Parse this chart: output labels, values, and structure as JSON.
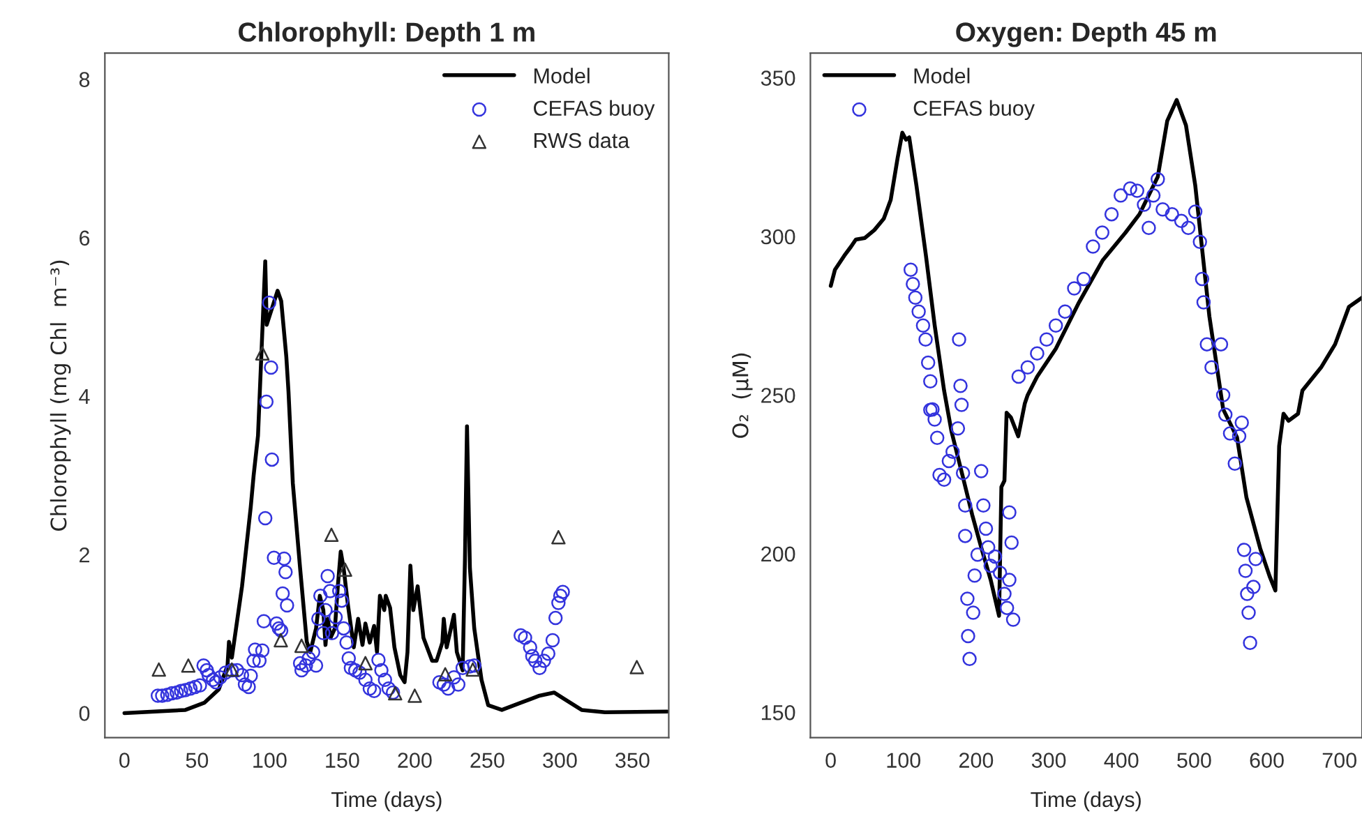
{
  "chart_data": [
    {
      "type": "line",
      "title": "Chlorophyll: Depth 1 m",
      "xlabel": "Time (days)",
      "ylabel": "Chlorophyll (mg Chl  m⁻³)",
      "xlim": [
        -13.5,
        375
      ],
      "ylim": [
        -0.31,
        8.33
      ],
      "xticks": [
        0,
        50,
        100,
        150,
        200,
        250,
        300,
        350
      ],
      "yticks": [
        0,
        2,
        4,
        6,
        8
      ],
      "grid": false,
      "legend": "top right",
      "series": [
        {
          "name": "Model",
          "color": "#000000",
          "marker": "none",
          "x": [
            0,
            42,
            55,
            65,
            71,
            72,
            74,
            81,
            87,
            89,
            92,
            97,
            98,
            105.5,
            108,
            111.5,
            113,
            116,
            121,
            125.6,
            128,
            132,
            134.6,
            137,
            138.5,
            140,
            142,
            145,
            147,
            149,
            151,
            154,
            158,
            161,
            164,
            166,
            169,
            172,
            174,
            176,
            179,
            180,
            183,
            186,
            190,
            193,
            195,
            197,
            199,
            202,
            206,
            212,
            215,
            219,
            220,
            222,
            227,
            229,
            233,
            234.6,
            236,
            238,
            241,
            246,
            250.6,
            260,
            273,
            286,
            296,
            302,
            315,
            331,
            374
          ],
          "values": [
            0,
            0.04,
            0.13,
            0.3,
            0.6,
            0.9,
            0.7,
            1.6,
            2.6,
            3.0,
            3.5,
            5.7,
            4.9,
            5.33,
            5.2,
            4.5,
            4.06,
            2.9,
            1.83,
            0.9,
            0.77,
            1.07,
            1.48,
            1.3,
            0.86,
            1.19,
            0.95,
            1.07,
            1.6,
            2.04,
            1.83,
            1.36,
            0.83,
            1.19,
            0.86,
            1.13,
            0.89,
            1.1,
            0.77,
            1.48,
            1.3,
            1.48,
            1.33,
            0.83,
            0.48,
            0.39,
            0.77,
            1.86,
            1.3,
            1.6,
            0.95,
            0.66,
            0.66,
            0.89,
            1.19,
            0.83,
            1.24,
            0.77,
            0.54,
            1.95,
            3.62,
            1.83,
            1.07,
            0.42,
            0.1,
            0.04,
            0.13,
            0.22,
            0.26,
            0.19,
            0.04,
            0.01,
            0.02
          ]
        },
        {
          "name": "CEFAS buoy",
          "type": "scatter",
          "color": "#3333dd",
          "marker": "circle",
          "x": [
            23,
            26,
            29.5,
            32.7,
            36,
            39,
            42,
            45.5,
            48.7,
            52,
            54.5,
            56.7,
            58,
            61,
            63,
            66,
            69.6,
            74,
            77.6,
            81,
            83,
            85.6,
            87,
            89,
            90,
            93,
            95,
            96,
            97,
            97.8,
            99.7,
            101,
            101.6,
            103,
            104.8,
            106.4,
            108,
            109,
            110,
            111,
            112,
            121,
            122,
            125,
            127,
            130,
            132,
            133.6,
            135,
            137,
            138.5,
            140,
            141.7,
            143,
            145.5,
            148,
            149.7,
            151,
            153,
            154.5,
            156,
            159,
            162,
            166,
            169,
            172,
            175,
            177,
            179.5,
            182,
            185,
            217,
            220,
            223,
            227,
            230,
            233,
            238,
            241,
            273,
            276,
            279.5,
            281,
            283,
            286,
            289,
            292,
            295,
            297,
            299,
            300.3,
            302
          ],
          "values": [
            0.22,
            0.22,
            0.23,
            0.25,
            0.26,
            0.28,
            0.29,
            0.31,
            0.33,
            0.35,
            0.6,
            0.54,
            0.48,
            0.42,
            0.39,
            0.45,
            0.51,
            0.54,
            0.54,
            0.48,
            0.36,
            0.33,
            0.47,
            0.66,
            0.8,
            0.66,
            0.79,
            1.16,
            2.46,
            3.93,
            5.18,
            4.36,
            3.2,
            1.96,
            1.13,
            1.07,
            1.04,
            1.51,
            1.95,
            1.78,
            1.36,
            0.63,
            0.54,
            0.6,
            0.69,
            0.77,
            0.6,
            1.19,
            1.48,
            1.01,
            1.3,
            1.73,
            1.54,
            1.01,
            1.21,
            1.54,
            1.42,
            1.07,
            0.89,
            0.69,
            0.57,
            0.54,
            0.51,
            0.42,
            0.31,
            0.28,
            0.67,
            0.54,
            0.42,
            0.31,
            0.26,
            0.39,
            0.36,
            0.31,
            0.45,
            0.36,
            0.57,
            0.59,
            0.6,
            0.98,
            0.95,
            0.83,
            0.72,
            0.66,
            0.57,
            0.66,
            0.75,
            0.92,
            1.2,
            1.39,
            1.48,
            1.53
          ]
        },
        {
          "name": "RWS data",
          "type": "scatter",
          "color": "#333333",
          "marker": "triangle",
          "x": [
            23.7,
            44,
            74,
            95,
            107.7,
            122,
            142.6,
            152,
            166,
            186.5,
            200,
            221,
            240,
            299,
            353
          ],
          "values": [
            0.55,
            0.6,
            0.55,
            4.54,
            0.92,
            0.85,
            2.25,
            1.81,
            0.63,
            0.25,
            0.22,
            0.49,
            0.55,
            2.22,
            0.58
          ]
        }
      ]
    },
    {
      "type": "line",
      "title": "Oxygen: Depth 45 m",
      "xlabel": "Time (days)",
      "ylabel": "O₂  (µM)",
      "xlim": [
        -28,
        731
      ],
      "ylim": [
        142,
        357.8
      ],
      "xticks": [
        0,
        100,
        200,
        300,
        400,
        500,
        600,
        700
      ],
      "yticks": [
        150,
        200,
        250,
        300,
        350
      ],
      "grid": false,
      "legend": "top left",
      "series": [
        {
          "name": "Model",
          "color": "#000000",
          "marker": "none",
          "x": [
            0,
            5.8,
            18.6,
            28,
            34.5,
            47,
            60,
            73,
            82.5,
            92,
            98.5,
            103.6,
            108,
            118,
            131,
            143,
            156,
            166,
            182,
            194.6,
            207,
            220,
            231.6,
            234.8,
            239,
            242,
            248,
            258,
            267,
            271,
            284,
            309.7,
            341.6,
            374,
            405.6,
            424.8,
            450,
            463,
            476,
            488.8,
            501.6,
            521,
            540,
            559,
            572,
            591,
            604,
            611.8,
            617,
            623,
            630,
            643,
            649,
            674.7,
            694,
            713,
            731
          ],
          "values": [
            284.4,
            289.5,
            293.9,
            296.8,
            299,
            299.5,
            302,
            305.6,
            311.5,
            324.7,
            332.7,
            330.5,
            331.2,
            315.9,
            293.9,
            272,
            251.4,
            238.7,
            224,
            212.3,
            202,
            191.8,
            180.4,
            221,
            223,
            244.4,
            242.9,
            237,
            247.3,
            250,
            255.8,
            264.6,
            279.2,
            292.4,
            301.2,
            307,
            318.8,
            336.4,
            343,
            335,
            316,
            274.8,
            245.5,
            236.7,
            217.7,
            201.6,
            192.8,
            188.4,
            233.9,
            244.1,
            241.9,
            244.1,
            251.4,
            258.7,
            266,
            277.8,
            280.7
          ]
        },
        {
          "name": "CEFAS buoy",
          "type": "scatter",
          "color": "#3333dd",
          "marker": "circle",
          "x": [
            110,
            113,
            116.4,
            121,
            127,
            130.5,
            134,
            137,
            140,
            137,
            143,
            146.5,
            149.7,
            156,
            162.5,
            167.7,
            175,
            180,
            176.6,
            178.5,
            182,
            185,
            185,
            188,
            189,
            191,
            196,
            198,
            202,
            207,
            210,
            213.5,
            216.6,
            220,
            226,
            232.9,
            239,
            242.5,
            245.7,
            248.8,
            245.7,
            251,
            258.5,
            271,
            284,
            297,
            309.7,
            322.5,
            335,
            348,
            360.8,
            373.6,
            386.4,
            399,
            412,
            421.6,
            431,
            437.6,
            444,
            450,
            456.8,
            469.6,
            482.4,
            492,
            501.6,
            508,
            511,
            513,
            517.6,
            524,
            537,
            540,
            543,
            549.5,
            556,
            562,
            565.6,
            568.8,
            570.7,
            573,
            575,
            577,
            581.6,
            584.7
          ],
          "values": [
            289.5,
            285,
            280.7,
            276.3,
            271.9,
            267.5,
            260.2,
            254.3,
            245.5,
            245.3,
            242.3,
            236.5,
            224.8,
            223.3,
            229.2,
            232.1,
            239.5,
            246.9,
            267.5,
            252.9,
            225.4,
            215.2,
            205.6,
            185.8,
            174,
            166.8,
            181.4,
            193.1,
            199.7,
            226,
            215.2,
            207.9,
            202,
            196.2,
            199.1,
            194,
            187.3,
            182.9,
            191.7,
            203.5,
            213,
            179.2,
            255.8,
            258.7,
            263.1,
            267.5,
            271.9,
            276.3,
            283.6,
            286.6,
            296.8,
            301.2,
            307,
            312.9,
            315.1,
            314.4,
            310,
            302.7,
            312.9,
            318,
            308.5,
            307,
            304.9,
            302.7,
            307.8,
            298.3,
            286.6,
            279.2,
            266,
            258.7,
            266,
            250,
            243.8,
            237.9,
            228.4,
            237,
            241.3,
            201.2,
            194.6,
            187.3,
            181.4,
            171.9,
            189.5,
            198.3
          ]
        }
      ]
    }
  ]
}
